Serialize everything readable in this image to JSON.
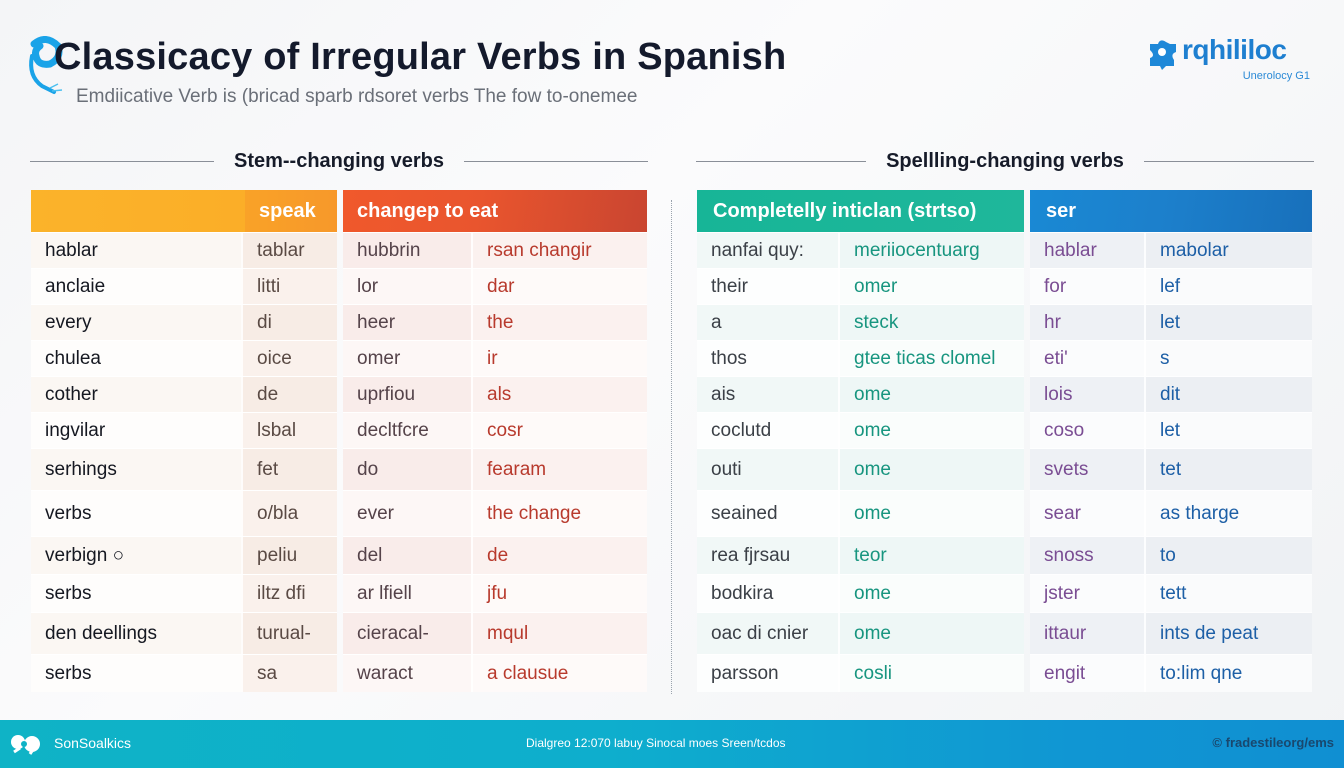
{
  "header": {
    "title": "Classicacy of Irregular Verbs in Spanish",
    "subtitle": "Emdiicative Verb is (bricad sparb rdsoret verbs The fow to-onemee"
  },
  "brand": {
    "name": "rqhililoc",
    "tagline": "Unerolocy G1"
  },
  "sections": {
    "left_heading": "Stem--changing verbs",
    "right_heading": "Spellling-changing verbs"
  },
  "tables": {
    "a": {
      "header": "speak",
      "color": "#fbb32a",
      "rows": [
        [
          "hablar",
          "tablar"
        ],
        [
          "anclaie",
          "litti"
        ],
        [
          "every",
          "di"
        ],
        [
          "chulea",
          "oice"
        ],
        [
          "cother",
          "de"
        ],
        [
          "ingvilar",
          "lsbal"
        ],
        [
          "serhings",
          "fet"
        ],
        [
          "verbs",
          "o/bla"
        ],
        [
          "verbign ○",
          "peliu"
        ],
        [
          "serbs",
          "iltz dfi"
        ],
        [
          "den deellings",
          "turual-"
        ],
        [
          "serbs",
          "sa"
        ]
      ]
    },
    "b": {
      "header": "changep to eat",
      "color": "#e9552e",
      "rows": [
        [
          "hubbrin",
          "rsan changir"
        ],
        [
          "lor",
          "dar"
        ],
        [
          "heer",
          "the"
        ],
        [
          "omer",
          "ir"
        ],
        [
          "uprfiou",
          "als"
        ],
        [
          "decltfcre",
          "cosr"
        ],
        [
          "do",
          "fearam"
        ],
        [
          "ever",
          "the change"
        ],
        [
          "del",
          "de"
        ],
        [
          "ar lfiell",
          "jfu"
        ],
        [
          "cieracal-",
          "mqul"
        ],
        [
          "waract",
          "a clausue"
        ]
      ]
    },
    "c": {
      "header": "Completelly inticlan (strtso)",
      "color": "#17b597",
      "rows": [
        [
          "nanfai quy:",
          "meriiocentuarg"
        ],
        [
          "their",
          "omer"
        ],
        [
          "a",
          "steck"
        ],
        [
          "thos",
          "gtee ticas clomel"
        ],
        [
          "ais",
          "ome"
        ],
        [
          "coclutd",
          "ome"
        ],
        [
          "outi",
          "ome"
        ],
        [
          "seained",
          "ome"
        ],
        [
          "rea fjrsau",
          "teor"
        ],
        [
          "bodkira",
          "ome"
        ],
        [
          "oac di cnier",
          "ome"
        ],
        [
          "parsson",
          "cosli"
        ]
      ]
    },
    "d": {
      "header": "ser",
      "color": "#1a89d4",
      "rows": [
        [
          "hablar",
          "mabolar"
        ],
        [
          "for",
          "lef"
        ],
        [
          "hr",
          "let"
        ],
        [
          "eti'",
          "s"
        ],
        [
          "lois",
          "dit"
        ],
        [
          "coso",
          "let"
        ],
        [
          "svets",
          "tet"
        ],
        [
          "sear",
          "as tharge"
        ],
        [
          "snoss",
          "to"
        ],
        [
          "jster",
          "tett"
        ],
        [
          "ittaur",
          "ints de peat"
        ],
        [
          "engit",
          "to:lim qne"
        ]
      ]
    }
  },
  "footer": {
    "brand": "SonSoalkics",
    "center": "Dialgreo 12:070 labuy Sinocal moes Sreen/tcdos",
    "right": "© fradestileorg/ems"
  }
}
